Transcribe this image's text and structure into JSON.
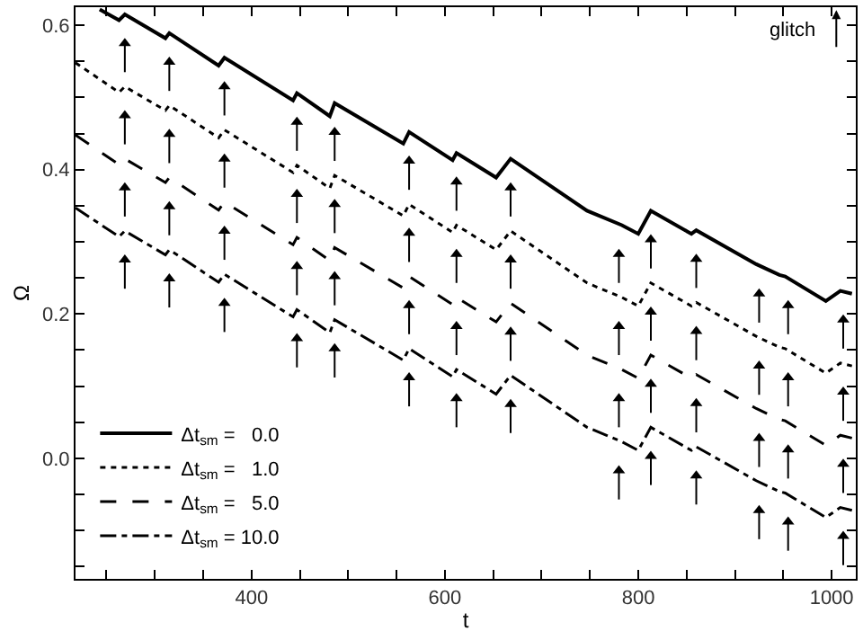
{
  "chart_data": {
    "type": "line",
    "xlabel": "t",
    "ylabel": "Ω",
    "xlim": [
      218,
      1025
    ],
    "ylim": [
      -0.167,
      0.625
    ],
    "xticks": [
      {
        "value": 250,
        "label": null
      },
      {
        "value": 300,
        "label": null
      },
      {
        "value": 350,
        "label": null
      },
      400,
      {
        "value": 450,
        "label": null
      },
      {
        "value": 500,
        "label": null
      },
      {
        "value": 550,
        "label": null
      },
      600,
      {
        "value": 650,
        "label": null
      },
      {
        "value": 700,
        "label": null
      },
      {
        "value": 750,
        "label": null
      },
      800,
      {
        "value": 850,
        "label": null
      },
      {
        "value": 900,
        "label": null
      },
      {
        "value": 950,
        "label": null
      },
      1000
    ],
    "yticks": [
      {
        "value": -0.15,
        "label": null
      },
      {
        "value": -0.1,
        "label": null
      },
      {
        "value": -0.05,
        "label": null
      },
      {
        "value": 0,
        "label": "0.0"
      },
      {
        "value": 0.05,
        "label": null
      },
      {
        "value": 0.1,
        "label": null
      },
      {
        "value": 0.15,
        "label": null
      },
      0.2,
      {
        "value": 0.25,
        "label": null
      },
      {
        "value": 0.3,
        "label": null
      },
      {
        "value": 0.35,
        "label": null
      },
      0.4,
      {
        "value": 0.45,
        "label": null
      },
      {
        "value": 0.5,
        "label": null
      },
      {
        "value": 0.55,
        "label": null
      },
      0.6
    ],
    "legend": "bottom left",
    "annotations": [
      "glitch"
    ],
    "series": [
      {
        "name": "Δt$_{sm}$ =   0.0",
        "color": "#000000",
        "line_style": "solid",
        "x": [
          243,
          263,
          269,
          311,
          315,
          366,
          372,
          443,
          447,
          481,
          486,
          557,
          563,
          608,
          612,
          653,
          668,
          747,
          783,
          800,
          813,
          855,
          860,
          922,
          946,
          952,
          994,
          1009,
          1021
        ],
        "values": [
          0.622,
          0.607,
          0.615,
          0.582,
          0.589,
          0.544,
          0.555,
          0.496,
          0.506,
          0.474,
          0.492,
          0.436,
          0.452,
          0.413,
          0.423,
          0.389,
          0.415,
          0.343,
          0.323,
          0.311,
          0.343,
          0.311,
          0.316,
          0.269,
          0.254,
          0.252,
          0.218,
          0.232,
          0.228
        ]
      },
      {
        "name": "Δt$_{sm}$ =   1.0",
        "color": "#000000",
        "line_style": "dotted",
        "x": [
          218,
          263,
          269,
          311,
          315,
          366,
          372,
          443,
          447,
          481,
          486,
          557,
          563,
          608,
          612,
          653,
          668,
          747,
          783,
          800,
          813,
          855,
          860,
          922,
          946,
          952,
          994,
          1009,
          1021
        ],
        "values": [
          0.548,
          0.507,
          0.515,
          0.482,
          0.489,
          0.444,
          0.455,
          0.396,
          0.406,
          0.374,
          0.392,
          0.336,
          0.352,
          0.313,
          0.323,
          0.289,
          0.315,
          0.243,
          0.223,
          0.211,
          0.243,
          0.211,
          0.216,
          0.169,
          0.154,
          0.152,
          0.118,
          0.132,
          0.128
        ]
      },
      {
        "name": "Δt$_{sm}$ =   5.0",
        "color": "#000000",
        "line_style": "dashed",
        "x": [
          218,
          263,
          269,
          311,
          315,
          366,
          372,
          443,
          447,
          481,
          486,
          557,
          563,
          608,
          612,
          653,
          668,
          747,
          783,
          800,
          813,
          855,
          860,
          922,
          946,
          952,
          994,
          1009,
          1021
        ],
        "values": [
          0.448,
          0.407,
          0.415,
          0.382,
          0.389,
          0.344,
          0.355,
          0.296,
          0.306,
          0.274,
          0.292,
          0.236,
          0.252,
          0.213,
          0.223,
          0.189,
          0.215,
          0.143,
          0.123,
          0.111,
          0.143,
          0.111,
          0.116,
          0.069,
          0.054,
          0.052,
          0.018,
          0.032,
          0.028
        ]
      },
      {
        "name": "Δt$_{sm}$ = 10.0",
        "color": "#000000",
        "line_style": "dashdot",
        "x": [
          218,
          263,
          269,
          311,
          315,
          366,
          372,
          443,
          447,
          481,
          486,
          557,
          563,
          608,
          612,
          653,
          668,
          747,
          783,
          800,
          813,
          855,
          860,
          922,
          946,
          952,
          994,
          1009,
          1021
        ],
        "values": [
          0.347,
          0.307,
          0.315,
          0.282,
          0.289,
          0.244,
          0.255,
          0.196,
          0.206,
          0.174,
          0.192,
          0.136,
          0.152,
          0.113,
          0.123,
          0.089,
          0.115,
          0.043,
          0.023,
          0.011,
          0.043,
          0.011,
          0.016,
          -0.031,
          -0.046,
          -0.048,
          -0.082,
          -0.068,
          -0.072
        ]
      },
      {
        "type": "scatter",
        "marker": "triangle",
        "color": "#000000",
        "errors": [
          [
            0.535,
            0.575
          ],
          [
            0.509,
            0.549
          ],
          [
            0.475,
            0.515
          ],
          [
            0.426,
            0.466
          ],
          [
            0.412,
            0.452
          ],
          [
            0.372,
            0.412
          ],
          [
            0.343,
            0.383
          ],
          [
            0.335,
            0.375
          ],
          [
            0.243,
            0.283
          ],
          [
            0.263,
            0.303
          ],
          [
            0.236,
            0.276
          ],
          [
            0.188,
            0.228
          ],
          [
            0.172,
            0.212
          ],
          [
            0.152,
            0.192
          ],
          [
            0.435,
            0.475
          ],
          [
            0.409,
            0.449
          ],
          [
            0.375,
            0.415
          ],
          [
            0.326,
            0.366
          ],
          [
            0.312,
            0.352
          ],
          [
            0.272,
            0.312
          ],
          [
            0.243,
            0.283
          ],
          [
            0.235,
            0.275
          ],
          [
            0.143,
            0.183
          ],
          [
            0.163,
            0.203
          ],
          [
            0.136,
            0.176
          ],
          [
            0.088,
            0.128
          ],
          [
            0.072,
            0.112
          ],
          [
            0.052,
            0.092
          ],
          [
            0.335,
            0.375
          ],
          [
            0.309,
            0.349
          ],
          [
            0.275,
            0.315
          ],
          [
            0.226,
            0.266
          ],
          [
            0.212,
            0.252
          ],
          [
            0.172,
            0.212
          ],
          [
            0.143,
            0.183
          ],
          [
            0.135,
            0.175
          ],
          [
            0.043,
            0.083
          ],
          [
            0.063,
            0.103
          ],
          [
            0.036,
            0.076
          ],
          [
            -0.012,
            0.028
          ],
          [
            -0.028,
            0.012
          ],
          [
            -0.048,
            -0.008
          ],
          [
            0.235,
            0.275
          ],
          [
            0.209,
            0.249
          ],
          [
            0.175,
            0.215
          ],
          [
            0.126,
            0.166
          ],
          [
            0.112,
            0.152
          ],
          [
            0.072,
            0.112
          ],
          [
            0.043,
            0.083
          ],
          [
            0.035,
            0.075
          ],
          [
            -0.057,
            -0.017
          ],
          [
            -0.037,
            0.003
          ],
          [
            -0.064,
            -0.024
          ],
          [
            -0.112,
            -0.072
          ],
          [
            -0.128,
            -0.088
          ],
          [
            -0.148,
            -0.108
          ]
        ],
        "x": [
          269,
          315,
          372,
          447,
          486,
          563,
          612,
          668,
          780,
          813,
          860,
          925,
          955,
          1012,
          269,
          315,
          372,
          447,
          486,
          563,
          612,
          668,
          780,
          813,
          860,
          925,
          955,
          1012,
          269,
          315,
          372,
          447,
          486,
          563,
          612,
          668,
          780,
          813,
          860,
          925,
          955,
          1012,
          269,
          315,
          372,
          447,
          486,
          563,
          612,
          668,
          780,
          813,
          860,
          925,
          955,
          1012
        ],
        "values": [
          0.575,
          0.549,
          0.515,
          0.466,
          0.452,
          0.412,
          0.383,
          0.375,
          0.283,
          0.303,
          0.276,
          0.228,
          0.212,
          0.192,
          0.475,
          0.449,
          0.415,
          0.366,
          0.352,
          0.312,
          0.283,
          0.275,
          0.183,
          0.203,
          0.176,
          0.128,
          0.112,
          0.092,
          0.375,
          0.349,
          0.315,
          0.266,
          0.252,
          0.212,
          0.183,
          0.175,
          0.083,
          0.103,
          0.076,
          0.028,
          0.012,
          -0.008,
          0.275,
          0.249,
          0.215,
          0.166,
          0.152,
          0.112,
          0.083,
          0.075,
          -0.017,
          0.003,
          -0.024,
          -0.072,
          -0.088,
          -0.108
        ]
      }
    ]
  }
}
